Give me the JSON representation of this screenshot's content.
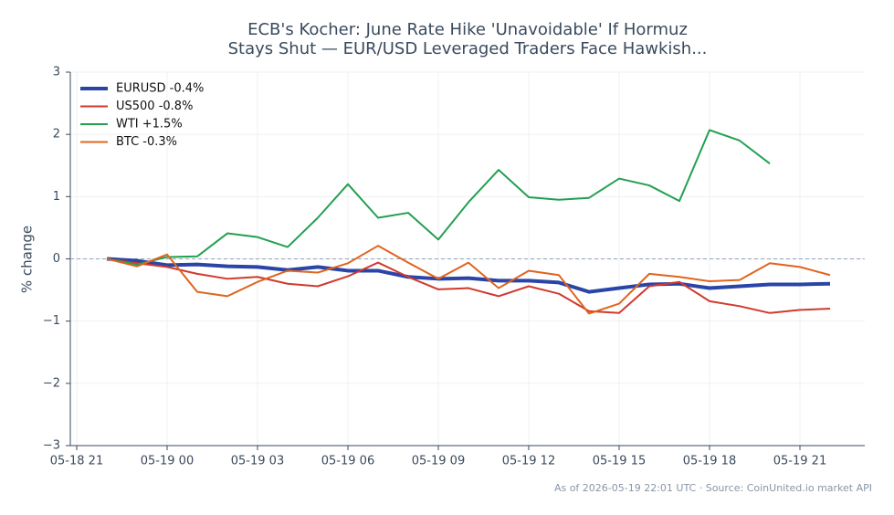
{
  "chart_data": {
    "type": "line",
    "title": [
      "ECB's Kocher: June Rate Hike 'Unavoidable' If Hormuz",
      "Stays Shut — EUR/USD Leveraged Traders Face Hawkish..."
    ],
    "y_label": "% change",
    "source": "As of 2026-05-19 22:01 UTC · Source: CoinUnited.io market API",
    "x": [
      "05-18 22",
      "05-18 23",
      "05-19 00",
      "05-19 01",
      "05-19 02",
      "05-19 03",
      "05-19 04",
      "05-19 05",
      "05-19 06",
      "05-19 07",
      "05-19 08",
      "05-19 09",
      "05-19 10",
      "05-19 11",
      "05-19 12",
      "05-19 13",
      "05-19 14",
      "05-19 15",
      "05-19 16",
      "05-19 17",
      "05-19 18",
      "05-19 19",
      "05-19 20",
      "05-19 21",
      "05-19 22"
    ],
    "xticks": [
      "05-18 21",
      "05-19 00",
      "05-19 03",
      "05-19 06",
      "05-19 09",
      "05-19 12",
      "05-19 15",
      "05-19 18",
      "05-19 21"
    ],
    "ylim": [
      -3,
      3
    ],
    "yticks": [
      {
        "value": -3,
        "label": "−3"
      },
      {
        "value": -2,
        "label": "−2"
      },
      {
        "value": -1,
        "label": "−1"
      },
      0,
      1,
      2,
      3
    ],
    "grid": true,
    "baseline": 0,
    "legend": "upper left",
    "series": [
      {
        "name": "EURUSD -0.4%",
        "color": "#2a44a8",
        "values": [
          0,
          -0.03,
          -0.1,
          -0.09,
          -0.12,
          -0.13,
          -0.18,
          -0.13,
          -0.19,
          -0.19,
          -0.29,
          -0.32,
          -0.31,
          -0.35,
          -0.35,
          -0.38,
          -0.53,
          -0.47,
          -0.41,
          -0.4,
          -0.47,
          -0.44,
          -0.41,
          -0.41,
          -0.4
        ]
      },
      {
        "name": "US500 -0.8%",
        "color": "#d03a2e",
        "values": [
          0,
          -0.07,
          -0.13,
          -0.24,
          -0.32,
          -0.29,
          -0.4,
          -0.44,
          -0.28,
          -0.06,
          -0.29,
          -0.49,
          -0.47,
          -0.6,
          -0.44,
          -0.56,
          -0.84,
          -0.87,
          -0.44,
          -0.37,
          -0.68,
          -0.76,
          -0.87,
          -0.82,
          -0.8
        ]
      },
      {
        "name": "WTI +1.5%",
        "color": "#22a050",
        "values": [
          0,
          -0.09,
          0.03,
          0.04,
          0.41,
          0.35,
          0.19,
          0.66,
          1.2,
          0.66,
          0.74,
          0.31,
          0.91,
          1.43,
          0.99,
          0.95,
          0.98,
          1.29,
          1.18,
          0.93,
          2.07,
          1.9,
          1.53,
          null,
          null
        ]
      },
      {
        "name": "BTC -0.3%",
        "color": "#e0641e",
        "values": [
          0,
          -0.12,
          0.07,
          -0.53,
          -0.6,
          -0.37,
          -0.19,
          -0.22,
          -0.07,
          0.21,
          -0.06,
          -0.32,
          -0.06,
          -0.47,
          -0.19,
          -0.26,
          -0.88,
          -0.72,
          -0.24,
          -0.29,
          -0.36,
          -0.34,
          -0.07,
          -0.13,
          -0.26
        ]
      }
    ]
  }
}
